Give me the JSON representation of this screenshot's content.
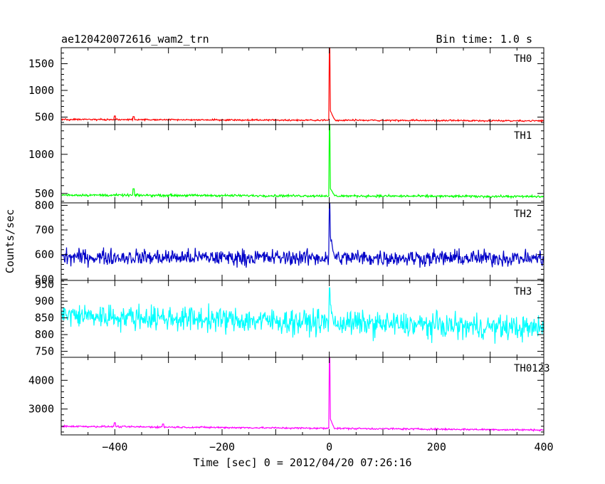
{
  "header": {
    "title": "ae120420072616_wam2_trn",
    "bin_time": "Bin time: 1.0 s"
  },
  "chart_data": {
    "type": "line",
    "title": "ae120420072616_wam2_trn",
    "subtitle": "Bin time: 1.0 s",
    "xlabel": "Time [sec] 0 = 2012/04/20 07:26:16",
    "ylabel": "Counts/sec",
    "xlim": [
      -500,
      400
    ],
    "x_ticks": [
      -400,
      -200,
      0,
      200,
      400
    ],
    "panels": [
      {
        "name": "TH0",
        "color": "#ff0000",
        "ylim": [
          360,
          1800
        ],
        "y_ticks": [
          500,
          1000,
          1500
        ],
        "baseline_start": 455,
        "baseline_end": 430,
        "noise": 22,
        "spike_peak": 1800,
        "post_spike_level": 640,
        "bumps": [
          {
            "x": -400,
            "value": 520
          },
          {
            "x": -365,
            "value": 510
          }
        ]
      },
      {
        "name": "TH1",
        "color": "#00ff00",
        "ylim": [
          380,
          1380
        ],
        "y_ticks": [
          500,
          1000
        ],
        "baseline_start": 480,
        "baseline_end": 460,
        "noise": 22,
        "spike_peak": 1380,
        "post_spike_level": 570,
        "bumps": [
          {
            "x": -365,
            "value": 560
          }
        ]
      },
      {
        "name": "TH2",
        "color": "#0000c8",
        "ylim": [
          495,
          810
        ],
        "y_ticks": [
          500,
          600,
          700,
          800
        ],
        "baseline_start": 590,
        "baseline_end": 585,
        "noise": 48,
        "spike_peak": 810,
        "post_spike_level": 680,
        "bumps": []
      },
      {
        "name": "TH3",
        "color": "#00ffff",
        "ylim": [
          732,
          962
        ],
        "y_ticks": [
          750,
          800,
          850,
          900,
          950
        ],
        "baseline_start": 858,
        "baseline_end": 818,
        "noise": 55,
        "spike_peak": 940,
        "post_spike_level": 900,
        "bumps": []
      },
      {
        "name": "TH0123",
        "color": "#ff00ff",
        "ylim": [
          2100,
          4800
        ],
        "y_ticks": [
          3000,
          4000
        ],
        "baseline_start": 2400,
        "baseline_end": 2270,
        "noise": 45,
        "spike_peak": 4800,
        "post_spike_level": 2700,
        "bumps": [
          {
            "x": -400,
            "value": 2520
          },
          {
            "x": -310,
            "value": 2480
          }
        ]
      }
    ]
  }
}
